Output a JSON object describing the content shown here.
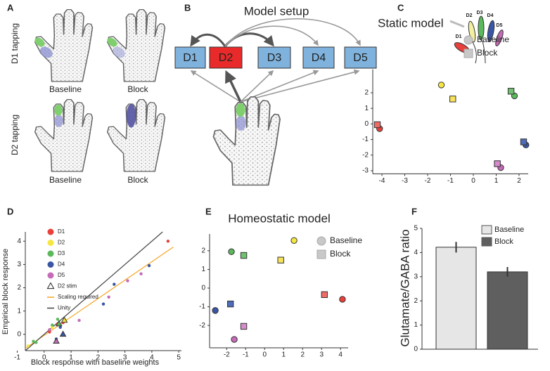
{
  "panel_labels": [
    "A",
    "B",
    "C",
    "D",
    "E",
    "F"
  ],
  "panel_a": {
    "row_labels": [
      "D1 tapping",
      "D2 tapping"
    ],
    "column_labels": [
      "Baseline",
      "Block",
      "Baseline",
      "Block"
    ]
  },
  "panel_b": {
    "title": "Model setup",
    "boxes": [
      "D1",
      "D2",
      "D3",
      "D4",
      "D5"
    ]
  },
  "chart_data": [
    {
      "type": "scatter",
      "title": "Static model",
      "finger_labels": [
        "D1",
        "D2",
        "D3",
        "D4",
        "D5"
      ],
      "xlim": [
        -4.4,
        2.4
      ],
      "xticks": [
        -4,
        -3,
        -2,
        -1,
        0,
        1,
        2
      ],
      "ylim": [
        -3.2,
        3.5
      ],
      "yticks": [
        -3,
        -2,
        -1,
        0,
        1,
        2
      ],
      "legend": "upper right",
      "series": [
        {
          "name": "Baseline",
          "marker": "circle",
          "color": "#c8c8c8",
          "x": [
            -4.1,
            -1.4,
            1.8,
            2.3,
            1.2
          ],
          "y": [
            -0.3,
            2.5,
            1.8,
            -1.35,
            -2.8
          ],
          "colors": [
            "#e8413c",
            "#f5e642",
            "#5cb85c",
            "#3a55a4",
            "#c56bb8"
          ]
        },
        {
          "name": "Block",
          "marker": "square",
          "color": "#c8c8c8",
          "x": [
            -4.2,
            -0.9,
            1.65,
            2.2,
            1.05
          ],
          "y": [
            -0.05,
            1.6,
            2.1,
            -1.15,
            -2.55
          ],
          "colors": [
            "#ef6b66",
            "#f7e35a",
            "#72c172",
            "#4f6cb8",
            "#d78bcc"
          ]
        }
      ]
    },
    {
      "type": "scatter",
      "xlabel": "Block response with baseline weights",
      "ylabel": "Empirical block response",
      "xlim": [
        -0.7,
        5.1
      ],
      "xticks": [
        -1,
        0,
        1,
        2,
        3,
        4,
        5
      ],
      "ylim": [
        -0.7,
        4.4
      ],
      "yticks": [
        0,
        1,
        2,
        3,
        4
      ],
      "legend": "upper left",
      "series": [
        {
          "name": "D1",
          "marker": "circle",
          "color": "#e8413c",
          "x": [
            4.6,
            0.5,
            0.2,
            0.7
          ],
          "y": [
            4.0,
            0.45,
            0.1,
            0.5
          ]
        },
        {
          "name": "D2",
          "marker": "circle",
          "color": "#f5e642",
          "x": [
            -0.6,
            0.8,
            0.3
          ],
          "y": [
            -0.5,
            0.6,
            0.3
          ]
        },
        {
          "name": "D3",
          "marker": "circle",
          "color": "#5cb85c",
          "x": [
            -0.4,
            0.5,
            0.3,
            -0.3
          ],
          "y": [
            -0.3,
            0.65,
            0.4,
            -0.35
          ]
        },
        {
          "name": "D4",
          "marker": "circle",
          "color": "#3a55a4",
          "x": [
            2.2,
            2.6,
            3.9,
            0.6,
            0.45
          ],
          "y": [
            1.3,
            2.15,
            2.95,
            0.3,
            -0.2
          ]
        },
        {
          "name": "D5",
          "marker": "circle",
          "color": "#c56bb8",
          "x": [
            3.6,
            3.1,
            2.4,
            1.3,
            0.2
          ],
          "y": [
            2.6,
            2.3,
            1.6,
            0.6,
            0.2
          ]
        },
        {
          "name": "D2 stim",
          "marker": "triangle",
          "color": "none",
          "x": [
            0.75,
            0.7,
            0.45,
            0.55
          ],
          "y": [
            0.6,
            0.0,
            -0.3,
            0.45
          ],
          "colors": [
            "#f5e642",
            "#3a55a4",
            "#c56bb8",
            "#5cb85c"
          ]
        }
      ],
      "lines": [
        {
          "name": "Scaling required",
          "color": "#f5a623",
          "x": [
            -0.7,
            4.8
          ],
          "y": [
            -0.6,
            3.75
          ]
        },
        {
          "name": "Unity",
          "color": "#444444",
          "x": [
            -0.7,
            4.4
          ],
          "y": [
            -0.7,
            4.4
          ]
        }
      ]
    },
    {
      "type": "scatter",
      "title": "Homeostatic model",
      "xlim": [
        -2.9,
        4.4
      ],
      "xticks": [
        -2,
        -1,
        0,
        1,
        2,
        3,
        4
      ],
      "ylim": [
        -3.2,
        2.9
      ],
      "yticks": [
        -2,
        -1,
        0,
        1,
        2
      ],
      "legend": "upper right",
      "series": [
        {
          "name": "Baseline",
          "marker": "circle",
          "color": "#c8c8c8",
          "x": [
            4.1,
            1.55,
            -1.75,
            -2.6,
            -1.6
          ],
          "y": [
            -0.6,
            2.55,
            1.95,
            -1.2,
            -2.75
          ],
          "colors": [
            "#e8413c",
            "#f5e642",
            "#5cb85c",
            "#3a55a4",
            "#c56bb8"
          ]
        },
        {
          "name": "Block",
          "marker": "square",
          "color": "#c8c8c8",
          "x": [
            3.15,
            0.85,
            -1.1,
            -1.8,
            -1.1
          ],
          "y": [
            -0.35,
            1.5,
            1.75,
            -0.85,
            -2.05
          ],
          "colors": [
            "#ef6b66",
            "#f7e35a",
            "#72c172",
            "#4f6cb8",
            "#d78bcc"
          ]
        }
      ]
    },
    {
      "type": "bar",
      "ylabel": "Glutamate/GABA ratio",
      "ylim": [
        0,
        5
      ],
      "yticks": [
        0,
        1,
        2,
        3,
        4,
        5
      ],
      "legend": "upper right",
      "series": [
        {
          "name": "Baseline",
          "color": "#e6e6e6",
          "values": [
            4.22
          ],
          "errors": [
            0.22
          ]
        },
        {
          "name": "Block",
          "color": "#5f5f5f",
          "values": [
            3.2
          ],
          "errors": [
            0.2
          ]
        }
      ]
    }
  ]
}
